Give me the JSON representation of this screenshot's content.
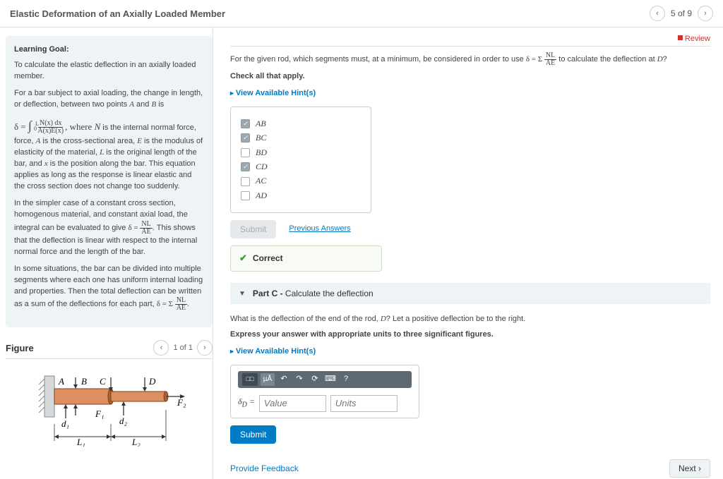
{
  "header": {
    "title": "Elastic Deformation of an Axially Loaded Member",
    "position": "5 of 9"
  },
  "review_label": "Review",
  "learning": {
    "heading": "Learning Goal:",
    "p1": "To calculate the elastic deflection in an axially loaded member.",
    "p2_a": "For a bar subject to axial loading, the change in length, or deflection, between two points ",
    "p2_b": " and ",
    "p2_c": " is",
    "A": "A",
    "B": "B",
    "eq1_lhs": "δ = ",
    "eq1_int_a": "∫",
    "eq1_int_b": "0",
    "eq1_int_c": "L",
    "eq1_num": "N(x) dx",
    "eq1_den": "A(x)E(x)",
    "p3_a": ", where ",
    "p3_N": "N",
    "p3_b": " is the internal normal force, ",
    "p3_A": "A",
    "p3_c": " is the cross-sectional area, ",
    "p3_E": "E",
    "p3_d": " is the modulus of elasticity of the material, ",
    "p3_L": "L",
    "p3_e": " is the original length of the bar, and ",
    "p3_x": "x",
    "p3_f": " is the position along the bar. This equation applies as long as the response is linear elastic and the cross section does not change too suddenly.",
    "p4_a": "In the simpler case of a constant cross section, homogenous material, and constant axial load, the integral can be evaluated to give ",
    "eq2_lhs": "δ = ",
    "eq2_num": "NL",
    "eq2_den": "AE",
    "p4_b": ". This shows that the deflection is linear with respect to the internal normal force and the length of the bar.",
    "p5_a": "In some situations, the bar can be divided into multiple segments where each one has uniform internal loading and properties. Then the total deflection can be written as a sum of the deflections for each part, ",
    "eq3_lhs": "δ = Σ ",
    "eq3_num": "NL",
    "eq3_den": "AE",
    "p5_b": "."
  },
  "figure": {
    "heading": "Figure",
    "position": "1 of 1",
    "labels": {
      "A": "A",
      "B": "B",
      "C": "C",
      "D": "D",
      "F1": "F₁",
      "F2": "F₂",
      "d1": "d₁",
      "d2": "d₂",
      "L1": "L₁",
      "L2": "L₂"
    }
  },
  "partB": {
    "intro_a": "For the given rod, which segments must, at a minimum, be considered in order to use ",
    "intro_eq_lhs": "δ = Σ ",
    "intro_eq_num": "NL",
    "intro_eq_den": "AE",
    "intro_b": " to calculate the deflection at ",
    "intro_D": "D",
    "intro_c": "?",
    "check_all": "Check all that apply.",
    "hints": "View Available Hint(s)",
    "options": [
      {
        "label": "AB",
        "checked": true
      },
      {
        "label": "BC",
        "checked": true
      },
      {
        "label": "BD",
        "checked": false
      },
      {
        "label": "CD",
        "checked": true
      },
      {
        "label": "AC",
        "checked": false
      },
      {
        "label": "AD",
        "checked": false
      }
    ],
    "submit": "Submit",
    "previous": "Previous Answers",
    "correct": "Correct"
  },
  "partC": {
    "label": "Part C - ",
    "title": "Calculate the deflection",
    "q_a": "What is the deflection of the end of the rod, ",
    "q_D": "D",
    "q_b": "? Let a positive deflection be to the right.",
    "express": "Express your answer with appropriate units to three significant figures.",
    "hints": "View Available Hint(s)",
    "toolbar": {
      "t1": "□□",
      "t2": "µÅ",
      "undo": "↶",
      "redo": "↷",
      "reset": "⟳",
      "kbd": "⌨",
      "help": "?"
    },
    "var_label": "δ_D =",
    "value_ph": "Value",
    "units_ph": "Units",
    "submit": "Submit"
  },
  "footer": {
    "feedback": "Provide Feedback",
    "next": "Next ›"
  },
  "colors": {
    "panel_bg": "#eef3f6",
    "link": "#007bc4",
    "correct": "#3a9e2f",
    "btn_blue": "#007bc4",
    "toolbar": "#5d6a74",
    "rod_light": "#e09060",
    "rod_dark": "#b06030",
    "wall": "#d5d9dc"
  }
}
